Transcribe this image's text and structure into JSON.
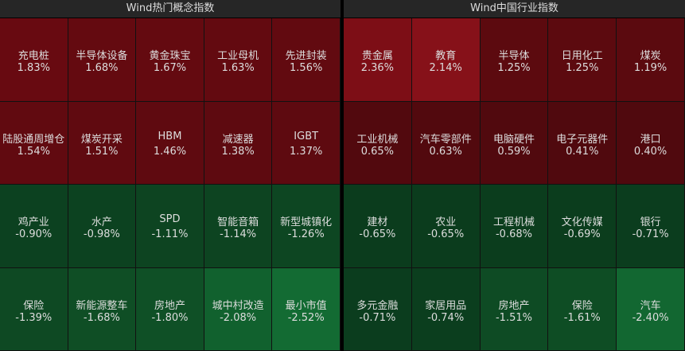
{
  "panels": [
    {
      "title": "Wind热门概念指数",
      "cells": [
        {
          "label": "充电桩",
          "value": "1.83%",
          "color": "#680a11"
        },
        {
          "label": "半导体设备",
          "value": "1.68%",
          "color": "#640a10"
        },
        {
          "label": "黄金珠宝",
          "value": "1.67%",
          "color": "#640a10"
        },
        {
          "label": "工业母机",
          "value": "1.63%",
          "color": "#630a10"
        },
        {
          "label": "先进封装",
          "value": "1.56%",
          "color": "#620a10"
        },
        {
          "label": "陆股通周增仓",
          "value": "1.54%",
          "color": "#610a10"
        },
        {
          "label": "煤炭开采",
          "value": "1.51%",
          "color": "#600a10"
        },
        {
          "label": "HBM",
          "value": "1.46%",
          "color": "#5f0a10"
        },
        {
          "label": "减速器",
          "value": "1.38%",
          "color": "#5e0a10"
        },
        {
          "label": "IGBT",
          "value": "1.37%",
          "color": "#5e0a10"
        },
        {
          "label": "鸡产业",
          "value": "-0.90%",
          "color": "#0c4120"
        },
        {
          "label": "水产",
          "value": "-0.98%",
          "color": "#0c4220"
        },
        {
          "label": "SPD",
          "value": "-1.11%",
          "color": "#0d4421"
        },
        {
          "label": "智能音箱",
          "value": "-1.14%",
          "color": "#0d4421"
        },
        {
          "label": "新型城镇化",
          "value": "-1.26%",
          "color": "#0d4622"
        },
        {
          "label": "保险",
          "value": "-1.39%",
          "color": "#0e4923"
        },
        {
          "label": "新能源整车",
          "value": "-1.68%",
          "color": "#0f4e25"
        },
        {
          "label": "房地产",
          "value": "-1.80%",
          "color": "#0f5026"
        },
        {
          "label": "城中村改造",
          "value": "-2.08%",
          "color": "#11612e"
        },
        {
          "label": "最小市值",
          "value": "-2.52%",
          "color": "#136b33"
        }
      ]
    },
    {
      "title": "Wind中国行业指数",
      "cells": [
        {
          "label": "贵金属",
          "value": "2.36%",
          "color": "#7d0e16"
        },
        {
          "label": "教育",
          "value": "2.14%",
          "color": "#861119"
        },
        {
          "label": "半导体",
          "value": "1.25%",
          "color": "#5c0a0f"
        },
        {
          "label": "日用化工",
          "value": "1.25%",
          "color": "#5c0a0f"
        },
        {
          "label": "煤炭",
          "value": "1.19%",
          "color": "#5b0a0f"
        },
        {
          "label": "工业机械",
          "value": "0.65%",
          "color": "#52090e"
        },
        {
          "label": "汽车零部件",
          "value": "0.63%",
          "color": "#52090e"
        },
        {
          "label": "电脑硬件",
          "value": "0.59%",
          "color": "#51090e"
        },
        {
          "label": "电子元器件",
          "value": "0.41%",
          "color": "#50090e"
        },
        {
          "label": "港口",
          "value": "0.40%",
          "color": "#50090e"
        },
        {
          "label": "建材",
          "value": "-0.65%",
          "color": "#0b3c1d"
        },
        {
          "label": "农业",
          "value": "-0.65%",
          "color": "#0b3c1d"
        },
        {
          "label": "工程机械",
          "value": "-0.68%",
          "color": "#0b3d1d"
        },
        {
          "label": "文化传媒",
          "value": "-0.69%",
          "color": "#0b3d1d"
        },
        {
          "label": "银行",
          "value": "-0.71%",
          "color": "#0b3d1e"
        },
        {
          "label": "多元金融",
          "value": "-0.71%",
          "color": "#0b3d1e"
        },
        {
          "label": "家居用品",
          "value": "-0.74%",
          "color": "#0b3e1e"
        },
        {
          "label": "房地产",
          "value": "-1.51%",
          "color": "#0e4b24"
        },
        {
          "label": "保险",
          "value": "-1.61%",
          "color": "#0e4d24"
        },
        {
          "label": "汽车",
          "value": "-2.40%",
          "color": "#126731"
        }
      ]
    }
  ]
}
